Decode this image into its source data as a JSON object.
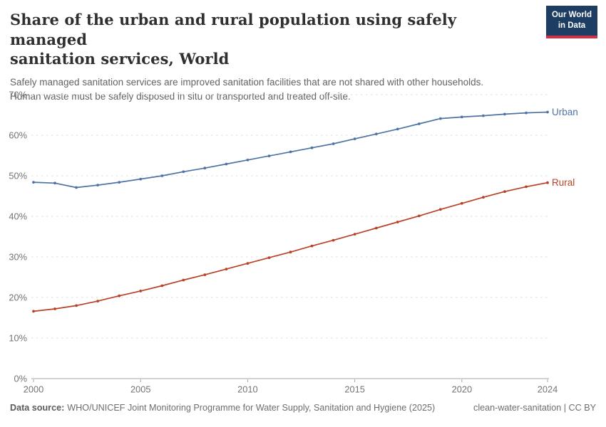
{
  "header": {
    "title_line1": "Share of the urban and rural population using safely managed",
    "title_line2": "sanitation services, World",
    "subtitle_line1": "Safely managed sanitation services are improved sanitation facilities that are not shared with other households.",
    "subtitle_line2": "Human waste must be safely disposed in situ or transported and treated off-site.",
    "logo_line1": "Our World",
    "logo_line2": "in Data",
    "logo_bg_color": "#1d3d63",
    "logo_accent_color": "#cc3344"
  },
  "chart_data": {
    "type": "line",
    "title": "Share of the urban and rural population using safely managed sanitation services, World",
    "xlabel": "",
    "ylabel": "",
    "x": [
      2000,
      2001,
      2002,
      2003,
      2004,
      2005,
      2006,
      2007,
      2008,
      2009,
      2010,
      2011,
      2012,
      2013,
      2014,
      2015,
      2016,
      2017,
      2018,
      2019,
      2020,
      2021,
      2022,
      2023,
      2024
    ],
    "series": [
      {
        "name": "Urban",
        "color": "#4e73a5",
        "values": [
          48.4,
          48.2,
          47.1,
          47.7,
          48.4,
          49.2,
          50.0,
          51.0,
          51.9,
          52.9,
          53.9,
          54.9,
          55.9,
          56.9,
          57.9,
          59.1,
          60.3,
          61.5,
          62.8,
          64.1,
          64.5,
          64.8,
          65.2,
          65.5,
          65.7
        ]
      },
      {
        "name": "Rural",
        "color": "#b84227",
        "values": [
          16.6,
          17.2,
          18.0,
          19.1,
          20.4,
          21.6,
          22.9,
          24.3,
          25.6,
          27.0,
          28.4,
          29.8,
          31.2,
          32.7,
          34.1,
          35.6,
          37.1,
          38.6,
          40.1,
          41.7,
          43.2,
          44.7,
          46.1,
          47.3,
          48.3
        ]
      }
    ],
    "ylim": [
      0,
      70
    ],
    "yticks": [
      0,
      10,
      20,
      30,
      40,
      50,
      60,
      70
    ],
    "ytick_suffix": "%",
    "xticks": [
      2000,
      2005,
      2010,
      2015,
      2020,
      2024
    ],
    "grid": "horizontal-dashed",
    "legend": "end-of-line-labels",
    "grid_color": "#dcdcdc",
    "axis_color": "#a6a6a6",
    "tick_label_color": "#737373"
  },
  "footer": {
    "source_label": "Data source:",
    "source_text": "WHO/UNICEF Joint Monitoring Programme for Water Supply, Sanitation and Hygiene (2025)",
    "slug": "clean-water-sanitation",
    "separator": " | ",
    "license": "CC BY"
  }
}
